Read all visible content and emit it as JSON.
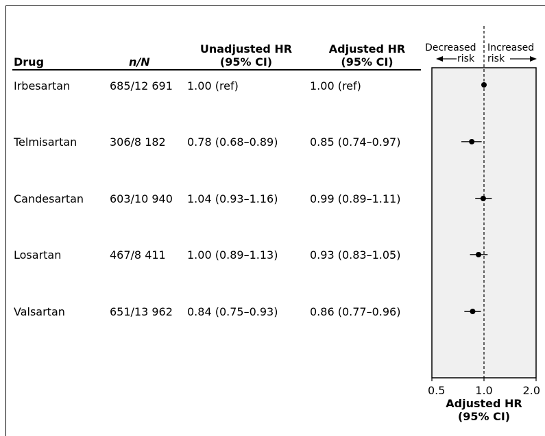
{
  "table": {
    "headers": {
      "drug": "Drug",
      "n_over_N": "n/N",
      "unadjusted": [
        "Unadjusted HR",
        "(95% CI)"
      ],
      "adjusted": [
        "Adjusted HR",
        "(95% CI)"
      ]
    },
    "rows": [
      {
        "drug": "Irbesartan",
        "n": "685/12 691",
        "unadjusted": "1.00 (ref)",
        "adjusted": "1.00 (ref)"
      },
      {
        "drug": "Telmisartan",
        "n": "306/8 182",
        "unadjusted": "0.78 (0.68–0.89)",
        "adjusted": "0.85 (0.74–0.97)"
      },
      {
        "drug": "Candesartan",
        "n": "603/10 940",
        "unadjusted": "1.04 (0.93–1.16)",
        "adjusted": "0.99 (0.89–1.11)"
      },
      {
        "drug": "Losartan",
        "n": "467/8 411",
        "unadjusted": "1.00 (0.89–1.13)",
        "adjusted": "0.93 (0.83–1.05)"
      },
      {
        "drug": "Valsartan",
        "n": "651/13 962",
        "unadjusted": "0.84 (0.75–0.93)",
        "adjusted": "0.86 (0.77–0.96)"
      }
    ]
  },
  "chart_data": {
    "type": "scatter",
    "subtype": "forest",
    "categories": [
      "Irbesartan",
      "Telmisartan",
      "Candesartan",
      "Losartan",
      "Valsartan"
    ],
    "series": [
      {
        "estimate": [
          1.0,
          0.85,
          0.99,
          0.93,
          0.86
        ],
        "lower": [
          1.0,
          0.74,
          0.89,
          0.83,
          0.77
        ],
        "upper": [
          1.0,
          0.97,
          1.11,
          1.05,
          0.96
        ]
      }
    ],
    "xlabel": [
      "Adjusted HR",
      "(95% CI)"
    ],
    "xscale": "log",
    "xlim": [
      0.5,
      2.0
    ],
    "xticks": [
      0.5,
      1.0,
      2.0
    ],
    "xtick_labels": [
      "0.5",
      "1.0",
      "2.0"
    ],
    "reference_line": 1.0,
    "annotations": {
      "left": [
        "Decreased",
        "risk"
      ],
      "right": [
        "Increased",
        "risk"
      ]
    },
    "colors": {
      "panel": "#f0f0f0",
      "marker": "#000000",
      "axis": "#000000"
    }
  }
}
